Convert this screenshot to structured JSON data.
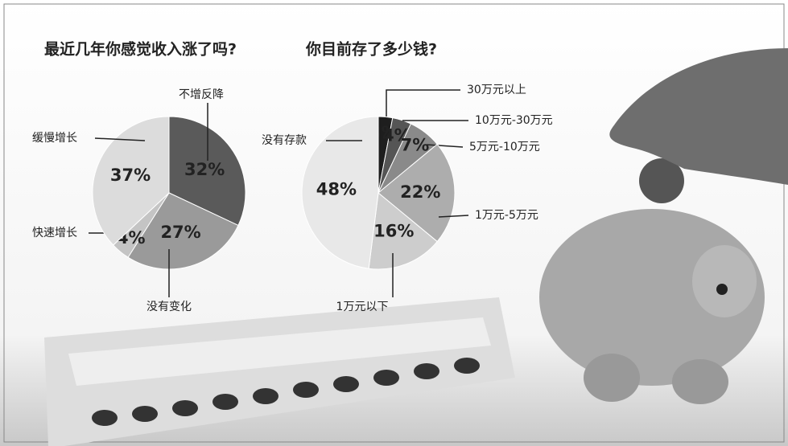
{
  "chart_data": [
    {
      "type": "pie",
      "title": "最近几年你感觉收入涨了吗?",
      "categories": [
        "不增反降",
        "没有变化",
        "快速增长",
        "缓慢增长"
      ],
      "values": [
        32,
        27,
        4,
        37
      ],
      "value_labels": [
        "32%",
        "27%",
        "4%",
        "37%"
      ],
      "colors": [
        "#5a5a5a",
        "#9a9a9a",
        "#c4c4c4",
        "#dcdcdc"
      ]
    },
    {
      "type": "pie",
      "title": "你目前存了多少钱?",
      "categories": [
        "30万元以上",
        "10万元-30万元",
        "5万元-10万元",
        "1万元-5万元",
        "1万元以下",
        "没有存款"
      ],
      "values": [
        3,
        4,
        7,
        22,
        16,
        48
      ],
      "value_labels": [
        "3%",
        "4%",
        "7%",
        "22%",
        "16%",
        "48%"
      ],
      "colors": [
        "#1e1e1e",
        "#555555",
        "#8a8a8a",
        "#adadad",
        "#cdcdcd",
        "#e8e8e8"
      ]
    }
  ]
}
